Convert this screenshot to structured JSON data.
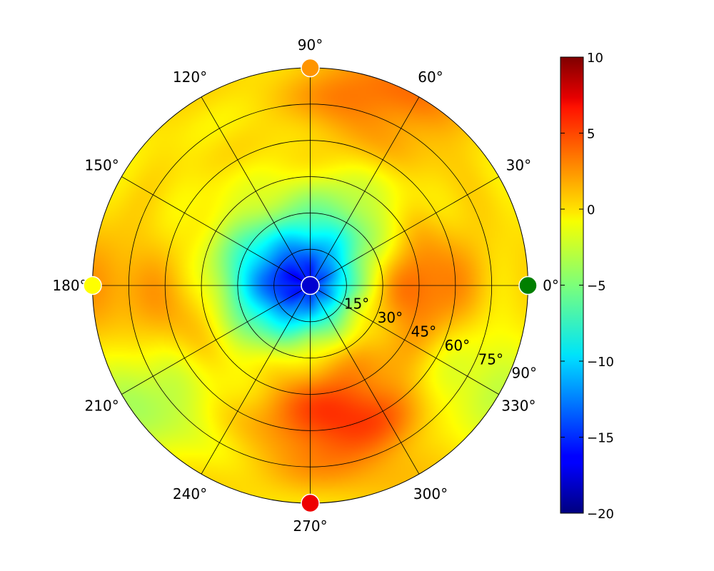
{
  "chart_data": {
    "type": "heatmap",
    "projection": "polar",
    "title": "",
    "angular_ticks": [
      "0°",
      "30°",
      "60°",
      "90°",
      "120°",
      "150°",
      "180°",
      "210°",
      "240°",
      "270°",
      "300°",
      "330°"
    ],
    "radial_ticks": [
      "15°",
      "30°",
      "45°",
      "60°",
      "75°",
      "90°"
    ],
    "r_range": [
      0,
      90
    ],
    "colorbar": {
      "colormap": "jet",
      "range": [
        -20,
        10
      ],
      "ticks": [
        "10",
        "5",
        "0",
        "−5",
        "−10",
        "−15",
        "−20"
      ]
    },
    "hot_spots": [
      {
        "theta": 0,
        "r": 45,
        "value": 3.5
      },
      {
        "theta": 270,
        "r": 55,
        "value": 3
      },
      {
        "theta": 295,
        "r": 60,
        "value": 3
      },
      {
        "theta": 80,
        "r": 80,
        "value": 2
      },
      {
        "theta": 180,
        "r": 85,
        "value": 1.5
      },
      {
        "theta": 195,
        "r": 50,
        "value": 2
      },
      {
        "theta": 60,
        "r": 90,
        "value": 2
      }
    ],
    "cold_spots": [
      {
        "theta": 160,
        "r": 20,
        "value": -6
      },
      {
        "theta": 60,
        "r": 25,
        "value": -5
      },
      {
        "theta": 200,
        "r": 20,
        "value": -4.5
      },
      {
        "theta": 215,
        "r": 80,
        "value": -4
      },
      {
        "theta": 330,
        "r": 80,
        "value": -3
      }
    ],
    "grid": true,
    "markers": [
      {
        "theta": 0,
        "r": 90,
        "value": -5.5,
        "color": "#007f00"
      },
      {
        "theta": 90,
        "r": 90,
        "value": 2.5,
        "color": "#ff9500"
      },
      {
        "theta": 180,
        "r": 90,
        "value": -0.5,
        "color": "#ffff00"
      },
      {
        "theta": 270,
        "r": 90,
        "value": 8.5,
        "color": "#ee0000"
      },
      {
        "theta": 0,
        "r": 0,
        "value": -18,
        "color": "#0000d0"
      }
    ]
  }
}
